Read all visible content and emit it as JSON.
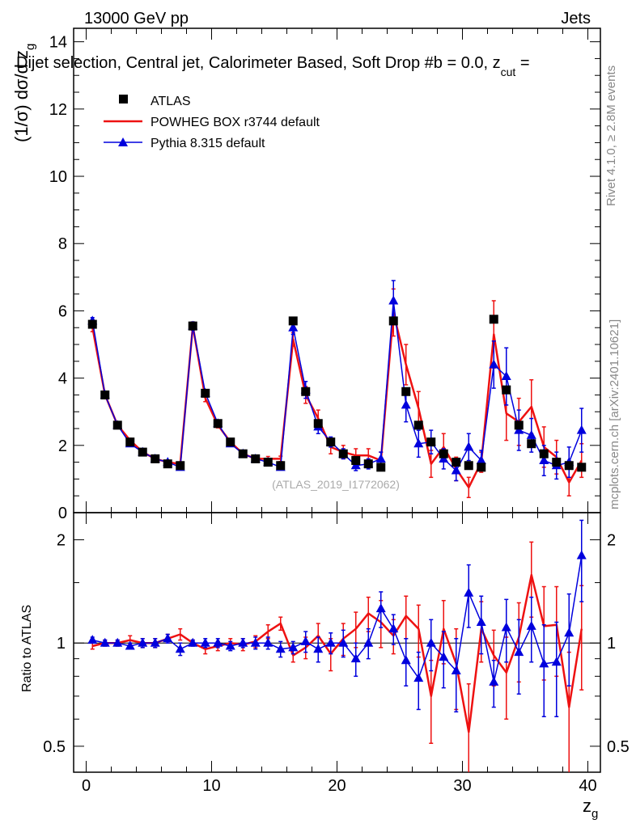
{
  "header": {
    "left": "13000 GeV pp",
    "right": "Jets",
    "title": "Dijet selection, Central jet, Calorimeter Based, Soft Drop #b = 0.0, z",
    "title_sub": "cut",
    "title_tail": " ="
  },
  "side": {
    "rivet": "Rivet 4.1.0, ≥ 2.8M events",
    "mcplots": "mcplots.cern.ch [arXiv:2401.10621]"
  },
  "watermark": "(ATLAS_2019_I1772062)",
  "colors": {
    "data": "#000000",
    "powheg": "#ee1111",
    "pythia": "#0000dd"
  },
  "chart_data": [
    {
      "type": "line",
      "panel": "main",
      "ylabel_main": "(1/σ) dσ/d z",
      "ylabel_sub": "g",
      "xlim": [
        -1,
        41
      ],
      "ylim": [
        0,
        14.4
      ],
      "yticks": [
        0,
        2,
        4,
        6,
        8,
        10,
        12,
        14
      ],
      "x": [
        0.5,
        1.5,
        2.5,
        3.5,
        4.5,
        5.5,
        6.5,
        7.5,
        8.5,
        9.5,
        10.5,
        11.5,
        12.5,
        13.5,
        14.5,
        15.5,
        16.5,
        17.5,
        18.5,
        19.5,
        20.5,
        21.5,
        22.5,
        23.5,
        24.5,
        25.5,
        26.5,
        27.5,
        28.5,
        29.5,
        30.5,
        31.5,
        32.5,
        33.5,
        34.5,
        35.5,
        36.5,
        37.5,
        38.5,
        39.5
      ],
      "legend": [
        "ATLAS",
        "POWHEG BOX r3744 default",
        "Pythia 8.315 default"
      ],
      "series": [
        {
          "name": "ATLAS",
          "values": [
            5.6,
            3.5,
            2.6,
            2.1,
            1.8,
            1.6,
            1.45,
            1.4,
            5.55,
            3.55,
            2.65,
            2.1,
            1.75,
            1.6,
            1.5,
            1.4,
            5.7,
            3.6,
            2.65,
            2.1,
            1.75,
            1.55,
            1.45,
            1.35,
            5.7,
            3.6,
            2.6,
            2.1,
            1.75,
            1.5,
            1.4,
            1.35,
            5.75,
            3.65,
            2.6,
            2.05,
            1.75,
            1.5,
            1.4,
            1.35
          ]
        },
        {
          "name": "POWHEG BOX r3744 default",
          "values": [
            5.5,
            3.5,
            2.6,
            2.15,
            1.8,
            1.6,
            1.5,
            1.45,
            5.55,
            3.4,
            2.6,
            2.1,
            1.75,
            1.6,
            1.6,
            1.6,
            5.15,
            3.5,
            2.8,
            1.95,
            1.8,
            1.7,
            1.7,
            1.55,
            5.95,
            4.4,
            3.1,
            1.45,
            1.95,
            1.3,
            0.75,
            1.5,
            5.3,
            2.95,
            2.7,
            3.15,
            1.95,
            1.65,
            0.9,
            1.55
          ]
        },
        {
          "name": "Pythia 8.315 default",
          "values": [
            5.7,
            3.5,
            2.6,
            2.05,
            1.8,
            1.6,
            1.5,
            1.35,
            5.55,
            3.55,
            2.65,
            2.05,
            1.75,
            1.6,
            1.5,
            1.35,
            5.5,
            3.65,
            2.55,
            2.1,
            1.75,
            1.4,
            1.45,
            1.6,
            6.3,
            3.2,
            2.05,
            2.1,
            1.6,
            1.25,
            1.95,
            1.55,
            4.4,
            4.05,
            2.45,
            2.3,
            1.55,
            1.4,
            1.5,
            2.45
          ]
        }
      ],
      "errors": {
        "POWHEG BOX r3744 default": [
          0.12,
          0.08,
          0.06,
          0.06,
          0.05,
          0.05,
          0.05,
          0.06,
          0.12,
          0.1,
          0.08,
          0.07,
          0.07,
          0.07,
          0.07,
          0.08,
          0.2,
          0.25,
          0.25,
          0.2,
          0.2,
          0.2,
          0.2,
          0.25,
          0.7,
          0.6,
          0.5,
          0.4,
          0.4,
          0.35,
          0.3,
          0.3,
          1.0,
          0.8,
          0.7,
          0.8,
          0.6,
          0.5,
          0.4,
          0.5
        ],
        "Pythia 8.315 default": [
          0.1,
          0.08,
          0.06,
          0.05,
          0.05,
          0.05,
          0.05,
          0.05,
          0.12,
          0.1,
          0.08,
          0.07,
          0.06,
          0.06,
          0.06,
          0.07,
          0.2,
          0.25,
          0.2,
          0.15,
          0.15,
          0.15,
          0.15,
          0.2,
          0.6,
          0.5,
          0.4,
          0.35,
          0.3,
          0.3,
          0.4,
          0.3,
          0.7,
          0.85,
          0.6,
          0.5,
          0.45,
          0.4,
          0.45,
          0.65
        ]
      }
    },
    {
      "type": "line",
      "panel": "ratio",
      "ylabel": "Ratio to ATLAS",
      "xlabel_main": "z",
      "xlabel_sub": "g",
      "xlim": [
        -1,
        41
      ],
      "ylim": [
        0.42,
        2.4
      ],
      "scale": "log",
      "yticks": [
        0.5,
        1,
        2
      ],
      "ytick_labels": [
        "0.5",
        "1",
        "2"
      ],
      "xticks": [
        0,
        10,
        20,
        30,
        40
      ],
      "xtick_labels": [
        "0",
        "10",
        "20",
        "30",
        "40"
      ],
      "series": [
        {
          "name": "POWHEG BOX r3744 default",
          "values": [
            0.98,
            1.0,
            1.0,
            1.02,
            1.0,
            1.0,
            1.03,
            1.06,
            1.0,
            0.96,
            0.98,
            1.0,
            0.99,
            1.01,
            1.08,
            1.14,
            0.92,
            0.97,
            1.05,
            0.93,
            1.03,
            1.1,
            1.22,
            1.15,
            1.05,
            1.2,
            1.1,
            0.7,
            1.1,
            0.87,
            0.55,
            1.1,
            0.92,
            0.82,
            1.04,
            1.58,
            1.12,
            1.13,
            0.65,
            1.1
          ]
        },
        {
          "name": "Pythia 8.315 default",
          "values": [
            1.02,
            1.0,
            1.0,
            0.98,
            1.0,
            1.0,
            1.03,
            0.96,
            1.0,
            1.0,
            1.0,
            0.98,
            1.0,
            1.0,
            1.0,
            0.96,
            0.97,
            1.01,
            0.96,
            1.0,
            1.0,
            0.9,
            1.0,
            1.26,
            1.1,
            0.89,
            0.79,
            1.0,
            0.91,
            0.83,
            1.4,
            1.15,
            0.77,
            1.11,
            0.94,
            1.12,
            0.87,
            0.88,
            1.07,
            1.8
          ]
        }
      ],
      "errors": {
        "POWHEG BOX r3744 default": [
          0.02,
          0.02,
          0.02,
          0.03,
          0.03,
          0.03,
          0.03,
          0.04,
          0.02,
          0.03,
          0.03,
          0.03,
          0.04,
          0.04,
          0.05,
          0.05,
          0.04,
          0.07,
          0.09,
          0.1,
          0.11,
          0.13,
          0.14,
          0.18,
          0.12,
          0.17,
          0.19,
          0.19,
          0.23,
          0.23,
          0.21,
          0.22,
          0.17,
          0.22,
          0.27,
          0.39,
          0.34,
          0.33,
          0.29,
          0.37
        ],
        "Pythia 8.315 default": [
          0.02,
          0.02,
          0.02,
          0.02,
          0.03,
          0.03,
          0.03,
          0.04,
          0.02,
          0.03,
          0.03,
          0.03,
          0.03,
          0.04,
          0.04,
          0.05,
          0.04,
          0.07,
          0.08,
          0.07,
          0.09,
          0.1,
          0.1,
          0.15,
          0.11,
          0.14,
          0.15,
          0.17,
          0.17,
          0.2,
          0.29,
          0.22,
          0.12,
          0.23,
          0.23,
          0.24,
          0.26,
          0.27,
          0.32,
          0.48
        ]
      }
    }
  ]
}
